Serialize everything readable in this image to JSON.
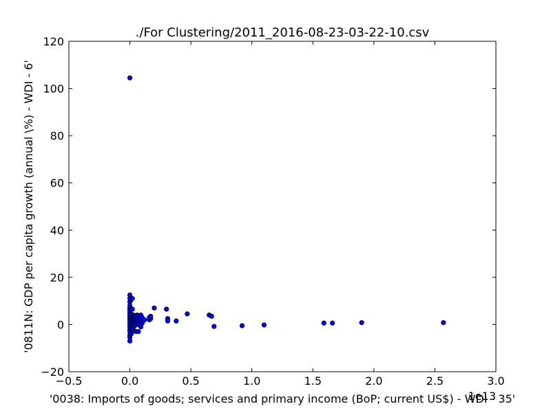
{
  "chart_data": {
    "type": "scatter",
    "title": "./For Clustering/2011_2016-08-23-03-22-10.csv",
    "xlabel": "'0038: Imports of goods; services and primary income  (BoP; current US$) - WDI - 35'",
    "ylabel": "'0811N: GDP per capita growth  (annual \\%) - WDI - 6'",
    "x_scale_label": "1e13",
    "xlim": [
      -0.5,
      3.0
    ],
    "ylim": [
      -20,
      120
    ],
    "x_ticks": [
      -0.5,
      0.0,
      0.5,
      1.0,
      1.5,
      2.0,
      2.5,
      3.0
    ],
    "x_tick_labels": [
      "−0.5",
      "0.0",
      "0.5",
      "1.0",
      "1.5",
      "2.0",
      "2.5",
      "3.0"
    ],
    "y_ticks": [
      -20,
      0,
      20,
      40,
      60,
      80,
      100,
      120
    ],
    "y_tick_labels": [
      "−20",
      "0",
      "20",
      "40",
      "60",
      "80",
      "100",
      "120"
    ],
    "grid": false,
    "marker_color": "#0000ff",
    "marker_edge_color": "#000000",
    "series": [
      {
        "x": [
          0.0,
          0.0,
          0.0,
          0.0,
          0.0,
          0.0,
          0.0,
          0.0,
          0.0,
          0.0,
          0.0,
          0.0,
          0.0,
          0.0,
          0.0,
          0.0,
          0.0,
          0.0,
          0.0,
          0.0,
          0.01,
          0.01,
          0.01,
          0.01,
          0.01,
          0.01,
          0.01,
          0.01,
          0.01,
          0.01,
          0.02,
          0.02,
          0.02,
          0.02,
          0.02,
          0.02,
          0.02,
          0.03,
          0.03,
          0.03,
          0.03,
          0.03,
          0.03,
          0.04,
          0.04,
          0.04,
          0.04,
          0.05,
          0.05,
          0.05,
          0.06,
          0.06,
          0.06,
          0.07,
          0.07,
          0.07,
          0.08,
          0.08,
          0.09,
          0.09,
          0.09,
          0.1,
          0.1,
          0.11,
          0.11,
          0.12,
          0.16,
          0.16,
          0.17,
          0.17,
          0.2,
          0.3,
          0.31,
          0.31,
          0.38,
          0.47,
          0.65,
          0.67,
          0.69,
          0.92,
          1.1,
          1.59,
          1.66,
          1.9,
          2.57
        ],
        "y": [
          104.5,
          12.5,
          11.0,
          9.5,
          8.0,
          7.0,
          6.0,
          5.0,
          4.0,
          3.0,
          2.5,
          2.0,
          1.0,
          0.0,
          -1.0,
          -2.0,
          -3.0,
          -4.5,
          -5.5,
          -7.0,
          10.5,
          6.5,
          4.5,
          3.5,
          2.0,
          1.0,
          0.0,
          -1.0,
          -2.5,
          -4.0,
          11.0,
          6.5,
          3.0,
          1.5,
          0.5,
          -1.5,
          -3.0,
          4.0,
          2.5,
          1.5,
          0.0,
          -1.0,
          -2.5,
          3.5,
          2.0,
          0.5,
          -0.5,
          3.0,
          1.0,
          -3.0,
          4.0,
          2.0,
          0.0,
          3.5,
          1.5,
          -3.0,
          2.5,
          0.5,
          4.0,
          1.0,
          -1.0,
          3.0,
          0.5,
          2.0,
          1.5,
          2.0,
          2.0,
          3.0,
          2.5,
          3.5,
          7.0,
          6.5,
          2.5,
          1.5,
          1.5,
          4.5,
          4.0,
          3.5,
          -0.8,
          -0.5,
          -0.2,
          0.6,
          0.6,
          0.8,
          0.8
        ]
      }
    ]
  }
}
